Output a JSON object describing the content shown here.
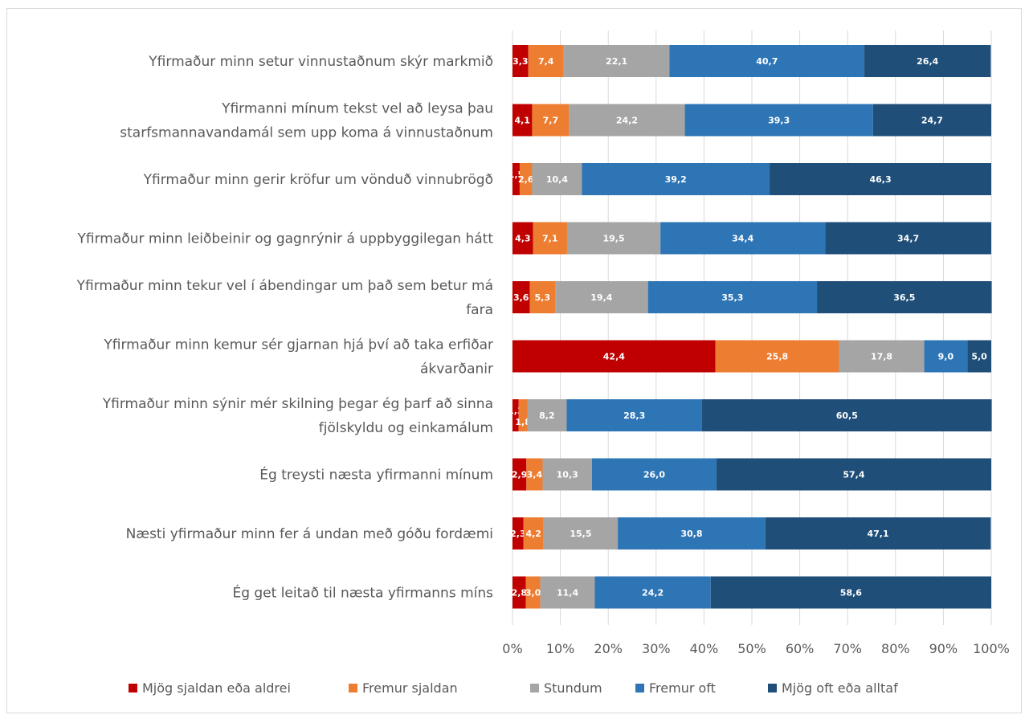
{
  "chart_data": {
    "type": "bar",
    "orientation": "horizontal",
    "stacked": "percent",
    "categories": [
      [
        "Yfirmaður minn setur vinnustaðnum skýr markmið"
      ],
      [
        "Yfirmanni mínum tekst vel að leysa þau",
        "starfsmannavandamál sem upp koma á vinnustaðnum"
      ],
      [
        "Yfirmaður minn gerir kröfur um vönduð vinnubrögð"
      ],
      [
        "Yfirmaður minn leiðbeinir og gagnrýnir á uppbyggilegan hátt"
      ],
      [
        "Yfirmaður minn tekur vel í ábendingar um það sem betur má",
        "fara"
      ],
      [
        "Yfirmaður minn kemur sér gjarnan hjá því að taka erfiðar",
        "ákvarðanir"
      ],
      [
        "Yfirmaður minn sýnir mér skilning þegar ég þarf að sinna",
        "fjölskyldu og einkamálum"
      ],
      [
        "Ég treysti næsta yfirmanni mínum"
      ],
      [
        "Næsti yfirmaður minn fer á undan með góðu fordæmi"
      ],
      [
        "Ég get leitað til næsta yfirmanns míns"
      ]
    ],
    "series": [
      {
        "name": "Mjög sjaldan eða aldrei",
        "color": "#c00000",
        "values": [
          3.3,
          4.1,
          1.5,
          4.3,
          3.6,
          42.4,
          1.3,
          2.9,
          2.3,
          2.8
        ],
        "labels": [
          "3,3",
          "4,1",
          "1,5",
          "4,3",
          "3,6",
          "42,4",
          "1,3",
          "2,9",
          "2,3",
          "2,8"
        ]
      },
      {
        "name": "Fremur sjaldan",
        "color": "#ed7d31",
        "values": [
          7.4,
          7.7,
          2.6,
          7.1,
          5.3,
          25.8,
          1.8,
          3.4,
          4.2,
          3.0
        ],
        "labels": [
          "7,4",
          "7,7",
          "2,6",
          "7,1",
          "5,3",
          "25,8",
          "1,8",
          "3,4",
          "4,2",
          "3,0"
        ]
      },
      {
        "name": "Stundum",
        "color": "#a5a5a5",
        "values": [
          22.1,
          24.2,
          10.4,
          19.5,
          19.4,
          17.8,
          8.2,
          10.3,
          15.5,
          11.4
        ],
        "labels": [
          "22,1",
          "24,2",
          "10,4",
          "19,5",
          "19,4",
          "17,8",
          "8,2",
          "10,3",
          "15,5",
          "11,4"
        ]
      },
      {
        "name": "Fremur oft",
        "color": "#2e75b6",
        "values": [
          40.7,
          39.3,
          39.2,
          34.4,
          35.3,
          9.0,
          28.3,
          26.0,
          30.8,
          24.2
        ],
        "labels": [
          "40,7",
          "39,3",
          "39,2",
          "34,4",
          "35,3",
          "9,0",
          "28,3",
          "26,0",
          "30,8",
          "24,2"
        ]
      },
      {
        "name": "Mjög oft eða alltaf",
        "color": "#1f4e79",
        "values": [
          26.4,
          24.7,
          46.3,
          34.7,
          36.5,
          5.0,
          60.5,
          57.4,
          47.1,
          58.6
        ],
        "labels": [
          "26,4",
          "24,7",
          "46,3",
          "34,7",
          "36,5",
          "5,0",
          "60,5",
          "57,4",
          "47,1",
          "58,6"
        ]
      }
    ],
    "xlim": [
      0,
      100
    ],
    "x_ticks": [
      "0%",
      "10%",
      "20%",
      "30%",
      "40%",
      "50%",
      "60%",
      "70%",
      "80%",
      "90%",
      "100%"
    ],
    "grid": true,
    "legend_position": "bottom"
  }
}
